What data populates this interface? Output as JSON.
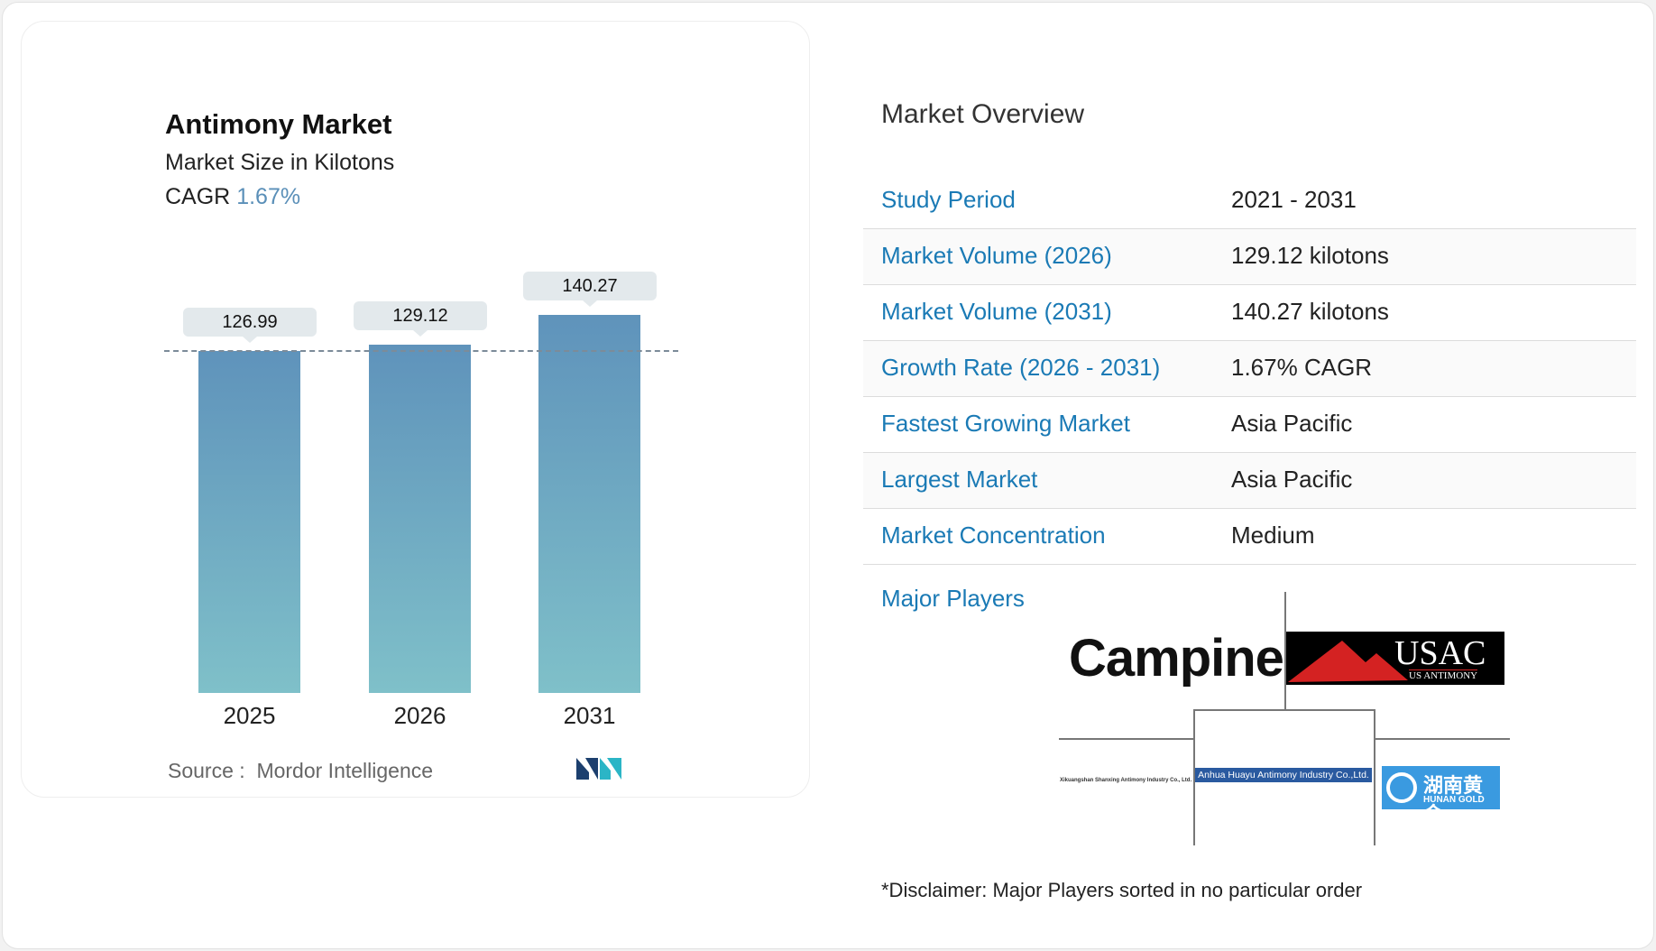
{
  "chart_data": {
    "type": "bar",
    "title": "Antimony Market",
    "subtitle": "Market Size in Kilotons",
    "cagr_label": "CAGR",
    "cagr_value": "1.67%",
    "categories": [
      "2025",
      "2026",
      "2031"
    ],
    "values": [
      126.99,
      129.12,
      140.27
    ],
    "value_labels": [
      "126.99",
      "129.12",
      "140.27"
    ],
    "ylim": [
      0,
      140.27
    ],
    "reference_line": 126.99,
    "source_label": "Source :",
    "source": "Mordor Intelligence",
    "colors": {
      "bar_top": "#5f93bb",
      "bar_bottom": "#7fc0c9"
    }
  },
  "overview": {
    "title": "Market Overview",
    "rows": [
      {
        "label": "Study Period",
        "value": "2021 - 2031"
      },
      {
        "label": "Market Volume (2026)",
        "value": "129.12 kilotons"
      },
      {
        "label": "Market Volume (2031)",
        "value": "140.27 kilotons"
      },
      {
        "label": "Growth Rate (2026 - 2031)",
        "value": "1.67% CAGR"
      },
      {
        "label": "Fastest Growing Market",
        "value": "Asia Pacific"
      },
      {
        "label": "Largest Market",
        "value": "Asia Pacific"
      },
      {
        "label": "Market Concentration",
        "value": "Medium"
      }
    ],
    "major_players_label": "Major Players",
    "players": [
      "Campine",
      "USAC",
      "US ANTIMONY",
      "Xikuangshan Shanxing Antimony Industry Co., Ltd.",
      "Anhua Huayu Antimony Industry Co.,Ltd.",
      "湖南黄金",
      "HUNAN GOLD"
    ],
    "disclaimer": "*Disclaimer: Major Players sorted in no particular order"
  }
}
